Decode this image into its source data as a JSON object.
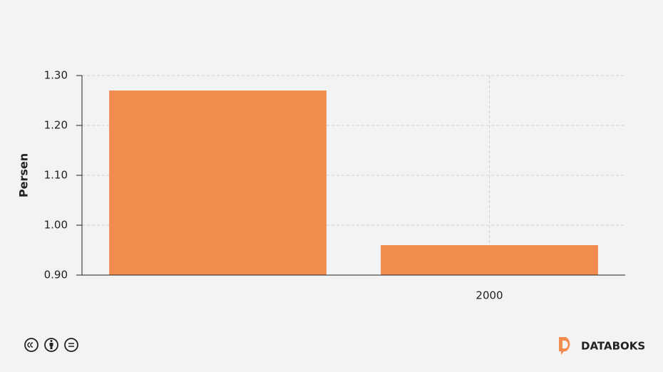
{
  "chart_data": {
    "type": "bar",
    "y_label": "Persen",
    "categories": [
      null,
      "2000"
    ],
    "values": [
      1.27,
      0.96
    ],
    "color": "#f28c4f",
    "ylim": [
      0.9,
      1.3
    ],
    "yticks": [
      {
        "value": 0.9,
        "label": "0.90"
      },
      {
        "value": 1.0,
        "label": "1.00"
      },
      {
        "value": 1.1,
        "label": "1.10"
      },
      {
        "value": 1.2,
        "label": "1.20"
      },
      {
        "value": 1.3,
        "label": "1.30"
      }
    ],
    "grid": true
  },
  "footer": {
    "brand": "DATABOKS"
  }
}
